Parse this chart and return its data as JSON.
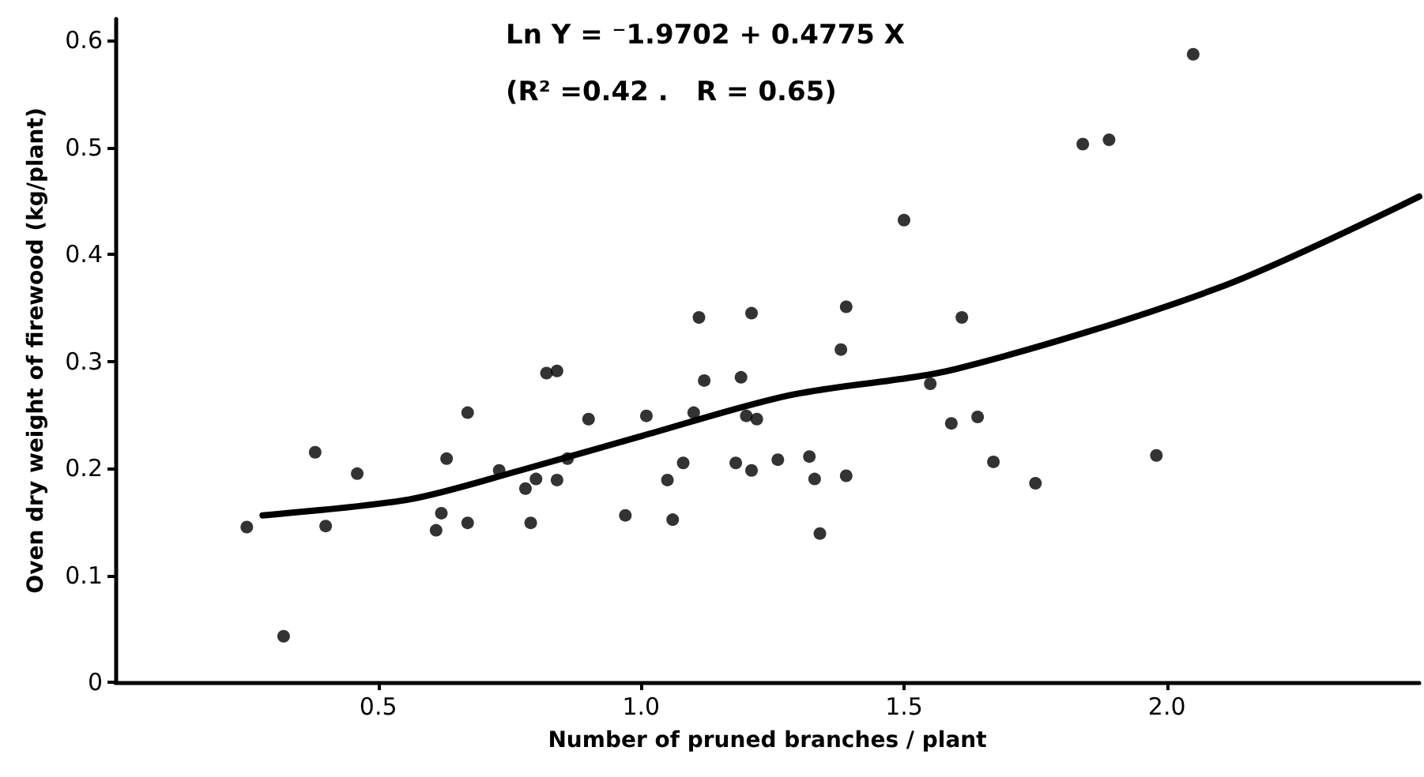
{
  "chart_data": {
    "type": "scatter",
    "xlabel": "Number of pruned branches / plant",
    "ylabel": "Oven dry weight of firewood (kg/plant)",
    "annotations": [
      "Ln Y = ⁻1.9702 + 0.4775 X",
      "(R² =0.42 .   R = 0.65)"
    ],
    "xlim": [
      0,
      2.48
    ],
    "ylim": [
      0,
      0.62
    ],
    "xticks": [
      0.5,
      {
        "value": 1,
        "label": "1.0"
      },
      1.5,
      {
        "value": 2,
        "label": "2.0"
      }
    ],
    "yticks": [
      0,
      0.1,
      0.2,
      0.3,
      0.4,
      0.5,
      0.6
    ],
    "grid": false,
    "marker": "circle",
    "series": [
      {
        "color": "#000000",
        "x": [
          0.25,
          0.32,
          0.38,
          0.4,
          0.46,
          0.61,
          0.62,
          0.63,
          0.67,
          0.67,
          0.73,
          0.78,
          0.79,
          0.8,
          0.82,
          0.84,
          0.84,
          0.86,
          0.9,
          0.97,
          1.01,
          1.05,
          1.06,
          1.08,
          1.1,
          1.11,
          1.12,
          1.19,
          1.21,
          1.18,
          1.21,
          1.2,
          1.22,
          1.26,
          1.32,
          1.33,
          1.34,
          1.39,
          1.55,
          1.59,
          1.64,
          1.67,
          1.75,
          1.98,
          1.39,
          1.38,
          1.5,
          1.61,
          1.84,
          1.89,
          2.05
        ],
        "values": [
          0.145,
          0.043,
          0.215,
          0.146,
          0.195,
          0.142,
          0.158,
          0.209,
          0.149,
          0.252,
          0.198,
          0.181,
          0.149,
          0.19,
          0.289,
          0.291,
          0.189,
          0.209,
          0.246,
          0.156,
          0.249,
          0.189,
          0.152,
          0.205,
          0.252,
          0.341,
          0.282,
          0.285,
          0.345,
          0.205,
          0.198,
          0.249,
          0.246,
          0.208,
          0.211,
          0.19,
          0.139,
          0.193,
          0.279,
          0.242,
          0.248,
          0.206,
          0.186,
          0.212,
          0.351,
          0.311,
          0.432,
          0.341,
          0.503,
          0.507,
          0.587
        ]
      },
      {
        "type": "line",
        "color": "#000000",
        "marker": "none",
        "line_style": "solid",
        "x": [
          0.28,
          0.56,
          0.77,
          1.0,
          1.28,
          1.6,
          2.1,
          2.48
        ],
        "values": [
          0.156,
          0.171,
          0.198,
          0.23,
          0.268,
          0.293,
          0.369,
          0.454
        ]
      }
    ]
  }
}
